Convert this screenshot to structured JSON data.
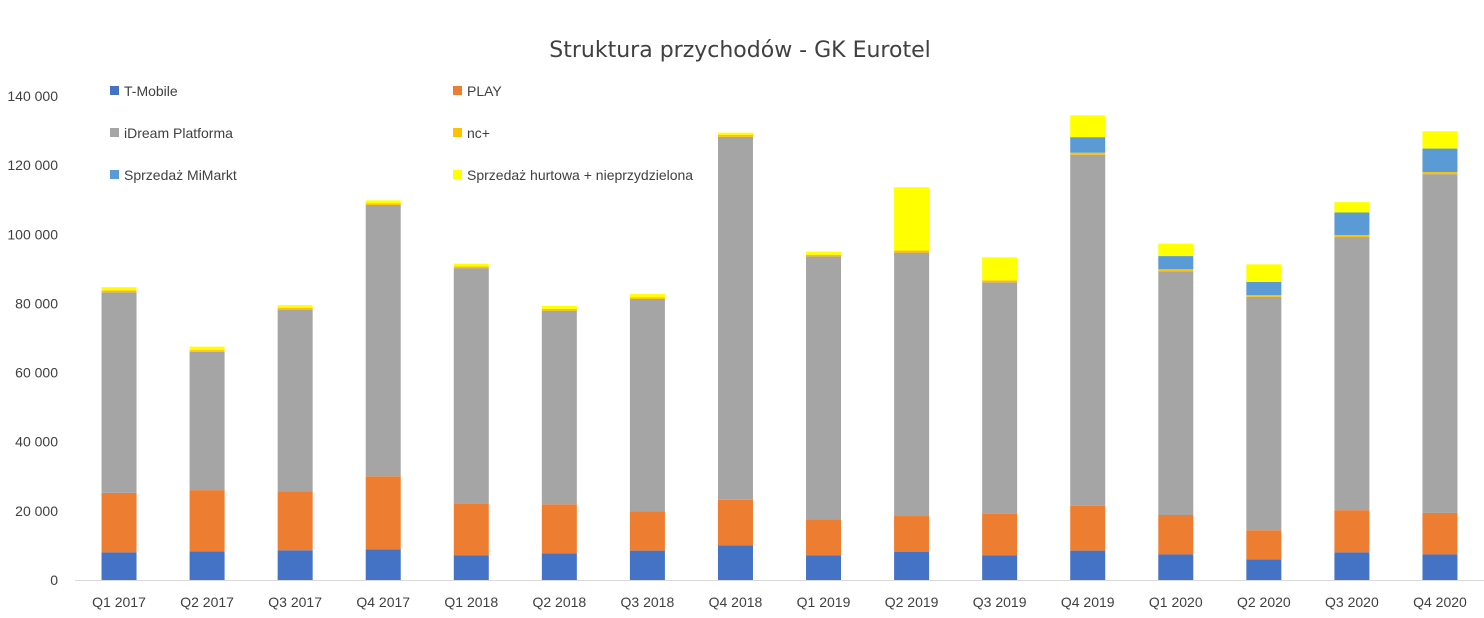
{
  "chart_data": {
    "type": "bar",
    "stacked": true,
    "title": "Struktura przychodów - GK Eurotel",
    "xlabel": "",
    "ylabel": "",
    "ylim": [
      0,
      140000
    ],
    "yticks": [
      "0",
      "20 000",
      "40 000",
      "60 000",
      "80 000",
      "100 000",
      "120 000",
      "140 000"
    ],
    "ytick_values": [
      0,
      20000,
      40000,
      60000,
      80000,
      100000,
      120000,
      140000
    ],
    "grid": false,
    "legend_position": "top-left",
    "categories": [
      "Q1 2017",
      "Q2 2017",
      "Q3 2017",
      "Q4 2017",
      "Q1 2018",
      "Q2 2018",
      "Q3 2018",
      "Q4 2018",
      "Q1 2019",
      "Q2 2019",
      "Q3 2019",
      "Q4 2019",
      "Q1 2020",
      "Q2 2020",
      "Q3 2020",
      "Q4 2020"
    ],
    "series": [
      {
        "name": "T-Mobile",
        "color": "#4472C4",
        "values": [
          8000,
          8300,
          8600,
          8900,
          7100,
          7700,
          8500,
          10000,
          7100,
          8200,
          7100,
          8500,
          7400,
          6000,
          8000,
          7400
        ]
      },
      {
        "name": "PLAY",
        "color": "#ED7D31",
        "values": [
          17200,
          17700,
          17100,
          21100,
          15100,
          14200,
          11300,
          13200,
          10500,
          10300,
          12000,
          13000,
          11400,
          8400,
          12200,
          12000
        ]
      },
      {
        "name": "iDream Platforma",
        "color": "#A5A5A5",
        "values": [
          58000,
          40000,
          52500,
          78500,
          68000,
          56000,
          61500,
          105000,
          76000,
          76200,
          67000,
          101500,
          70500,
          67500,
          79000,
          98000
        ]
      },
      {
        "name": "nc+",
        "color": "#FFC000",
        "values": [
          600,
          500,
          500,
          500,
          500,
          500,
          500,
          600,
          500,
          600,
          600,
          600,
          600,
          500,
          600,
          600
        ]
      },
      {
        "name": "Sprzedaż MiMarkt",
        "color": "#5B9BD5",
        "values": [
          0,
          0,
          0,
          0,
          0,
          0,
          0,
          0,
          0,
          0,
          0,
          4500,
          3800,
          3800,
          6500,
          6800
        ]
      },
      {
        "name": "Sprzedaż hurtowa + nieprzydzielona",
        "color": "#FFFF00",
        "values": [
          900,
          1000,
          800,
          800,
          800,
          900,
          900,
          600,
          900,
          18300,
          6600,
          6300,
          3600,
          5100,
          3000,
          5000
        ]
      }
    ]
  }
}
